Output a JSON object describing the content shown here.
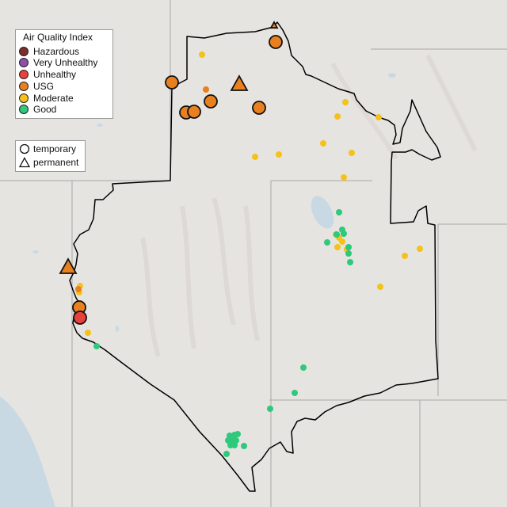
{
  "legend": {
    "title": "Air Quality Index",
    "categories": [
      {
        "label": "Hazardous",
        "color": "#7e2c2c"
      },
      {
        "label": "Very Unhealthy",
        "color": "#8e4fa6"
      },
      {
        "label": "Unhealthy",
        "color": "#e8413b"
      },
      {
        "label": "USG",
        "color": "#e8801f"
      },
      {
        "label": "Moderate",
        "color": "#f4c21a"
      },
      {
        "label": "Good",
        "color": "#2ec97a"
      }
    ]
  },
  "type_legend": {
    "temporary": "temporary",
    "permanent": "permanent"
  },
  "monitors": {
    "large": [
      {
        "cat": "USG",
        "shape": "circle"
      },
      {
        "cat": "USG",
        "shape": "circle"
      },
      {
        "cat": "USG",
        "shape": "circle"
      },
      {
        "cat": "USG",
        "shape": "circle"
      },
      {
        "cat": "USG",
        "shape": "circle"
      },
      {
        "cat": "USG",
        "shape": "circle"
      },
      {
        "cat": "USG",
        "shape": "circle"
      },
      {
        "cat": "Unhealthy",
        "shape": "circle"
      },
      {
        "cat": "USG",
        "shape": "triangle"
      },
      {
        "cat": "USG",
        "shape": "triangle"
      }
    ]
  }
}
